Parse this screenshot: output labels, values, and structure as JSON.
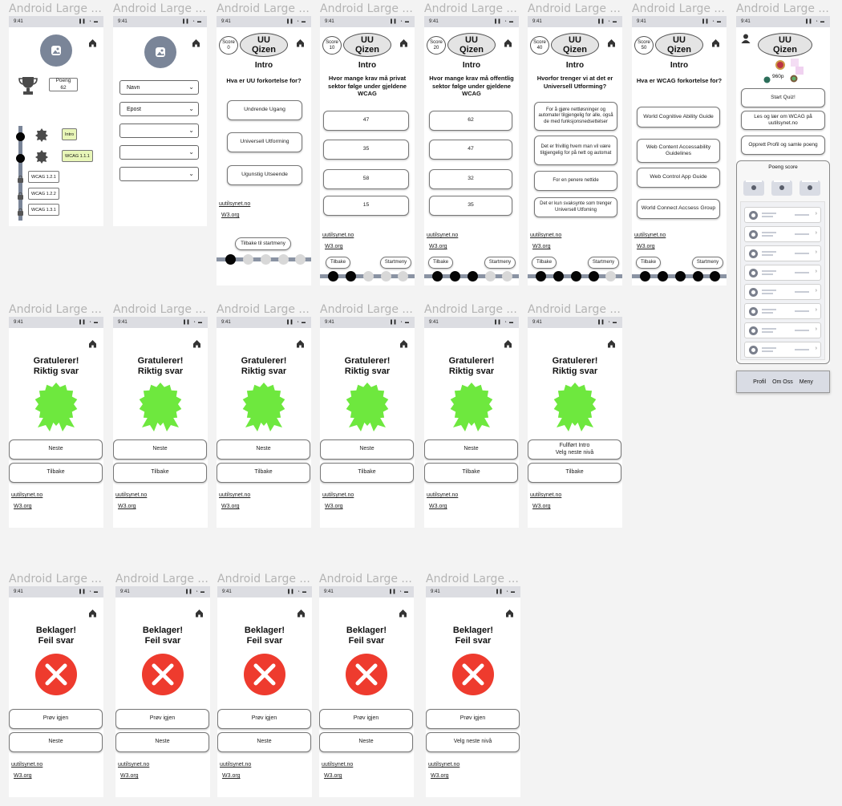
{
  "frame_label": "Android Large ...",
  "status_time": "9:41",
  "status_icons": "▌▌ ◔ ▬",
  "logo": {
    "line1": "UU",
    "line2": "Qizen"
  },
  "score_word": "Score",
  "links": {
    "uutilsynet": "uutilsynet.no",
    "w3": "W3.org"
  },
  "buttons": {
    "back_to_start": "Tilbake til startmeny",
    "tilbake": "Tilbake",
    "startmeny": "Startmeny",
    "neste": "Neste",
    "fullfort_1": "Fullført Intro",
    "fullfort_2": "Velg neste nivå",
    "prov_igjen": "Prøv igjen",
    "velg_neste_niva": "Velg neste nivå"
  },
  "profile": {
    "poeng": "Poeng 62",
    "milestones": [
      "Intro",
      "WCAG 1.1.1",
      "WCAG 1.2.1",
      "WCAG 1.2.2",
      "WCAG 1.3.1"
    ]
  },
  "signup": {
    "fields": [
      "Navn",
      "Epost",
      "",
      "",
      ""
    ]
  },
  "quiz": [
    {
      "score": "0",
      "section": "Intro",
      "question": "Hva er UU forkortelse for?",
      "answers": [
        "Undrende Ugang",
        "Universell Utforming",
        "Ugunstig Utseende"
      ]
    },
    {
      "score": "10",
      "section": "Intro",
      "question": "Hvor mange krav må privat sektor følge under gjeldene WCAG",
      "answers": [
        "47",
        "35",
        "58",
        "15"
      ]
    },
    {
      "score": "20",
      "section": "Intro",
      "question": "Hvor mange krav må offentlig sektor følge under gjeldene WCAG",
      "answers": [
        "62",
        "47",
        "32",
        "35"
      ]
    },
    {
      "score": "40",
      "section": "Intro",
      "question": "Hvorfor trenger vi at det er Universell Utforming?",
      "answers": [
        "For å gjøre nettløsninger og automater tilgjengelig for alle, også de med funksjonsnedsettelser",
        "Det er frivillig hvem man vil være tilgjengelig for på nett og automat",
        "For en penere nettide",
        "Det er kun svaksynte som trenger Universell Utfoming"
      ]
    },
    {
      "score": "50",
      "section": "Intro",
      "question": "Hva er WCAG forkortelse for?",
      "answers": [
        "World Cognitive Ability Guide",
        "Web Content Accessability Guidelines",
        "Web Control App Guide",
        "World Connect Accsess Group"
      ]
    }
  ],
  "home": {
    "points": "960p",
    "start": "Start Quiz!",
    "learn": "Les og lær om WCAG på uutilsynet.no",
    "create": "Opprett Profil og samle poeng",
    "score_title": "Poeng score",
    "nav": [
      "Profil",
      "Om Oss",
      "Meny"
    ]
  },
  "correct": {
    "line1": "Gratulerer!",
    "line2": "Riktig svar"
  },
  "wrong": {
    "line1": "Beklager!",
    "line2": "Feil svar"
  },
  "colors": {
    "badge_green": "#6ee83e",
    "error_red": "#ee3b2e",
    "rail": "#8a93a3",
    "statusbar": "#dcdde2",
    "milestone_fill": "#e8f6b8"
  }
}
